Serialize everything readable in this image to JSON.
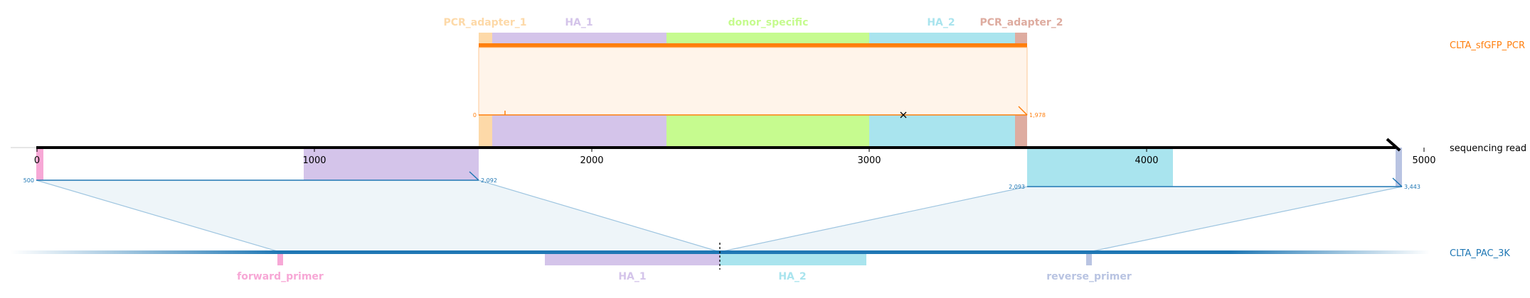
{
  "axis": {
    "label": "sequencing read",
    "ticks": [
      "0",
      "1000",
      "2000",
      "3000",
      "4000",
      "5000"
    ]
  },
  "colors": {
    "pcr": "#ff7f0e",
    "pcr_bg": "#fff4ea",
    "pac": "#1f77b4",
    "pac_bg": "#eef5f9",
    "pcr_adapter_1": "#fdd9a8",
    "ha_1": "#d4c4ea",
    "donor_specific": "#c6fb8f",
    "ha_2": "#a9e4ee",
    "pcr_adapter_2": "#deaca0",
    "forward_primer": "#f7a8d6",
    "reverse_primer": "#b9c4e2"
  },
  "references": {
    "pcr": {
      "name": "CLTA_sfGFP_PCR",
      "start_label": "0",
      "end_label": "1,978",
      "features": [
        {
          "name": "PCR_adapter_1",
          "color": "#fdd9a8"
        },
        {
          "name": "HA_1",
          "color": "#d4c4ea"
        },
        {
          "name": "donor_specific",
          "color": "#c6fb8f"
        },
        {
          "name": "HA_2",
          "color": "#a9e4ee"
        },
        {
          "name": "PCR_adapter_2",
          "color": "#deaca0"
        }
      ]
    },
    "pac": {
      "name": "CLTA_PAC_3K",
      "alignment_1": {
        "start_label": "500",
        "end_label": "2,092"
      },
      "alignment_2": {
        "start_label": "2,093",
        "end_label": "3,443"
      },
      "features": [
        {
          "name": "forward_primer",
          "color": "#f7a8d6"
        },
        {
          "name": "HA_1",
          "color": "#d4c4ea"
        },
        {
          "name": "HA_2",
          "color": "#a9e4ee"
        },
        {
          "name": "reverse_primer",
          "color": "#b9c4e2"
        }
      ]
    }
  }
}
